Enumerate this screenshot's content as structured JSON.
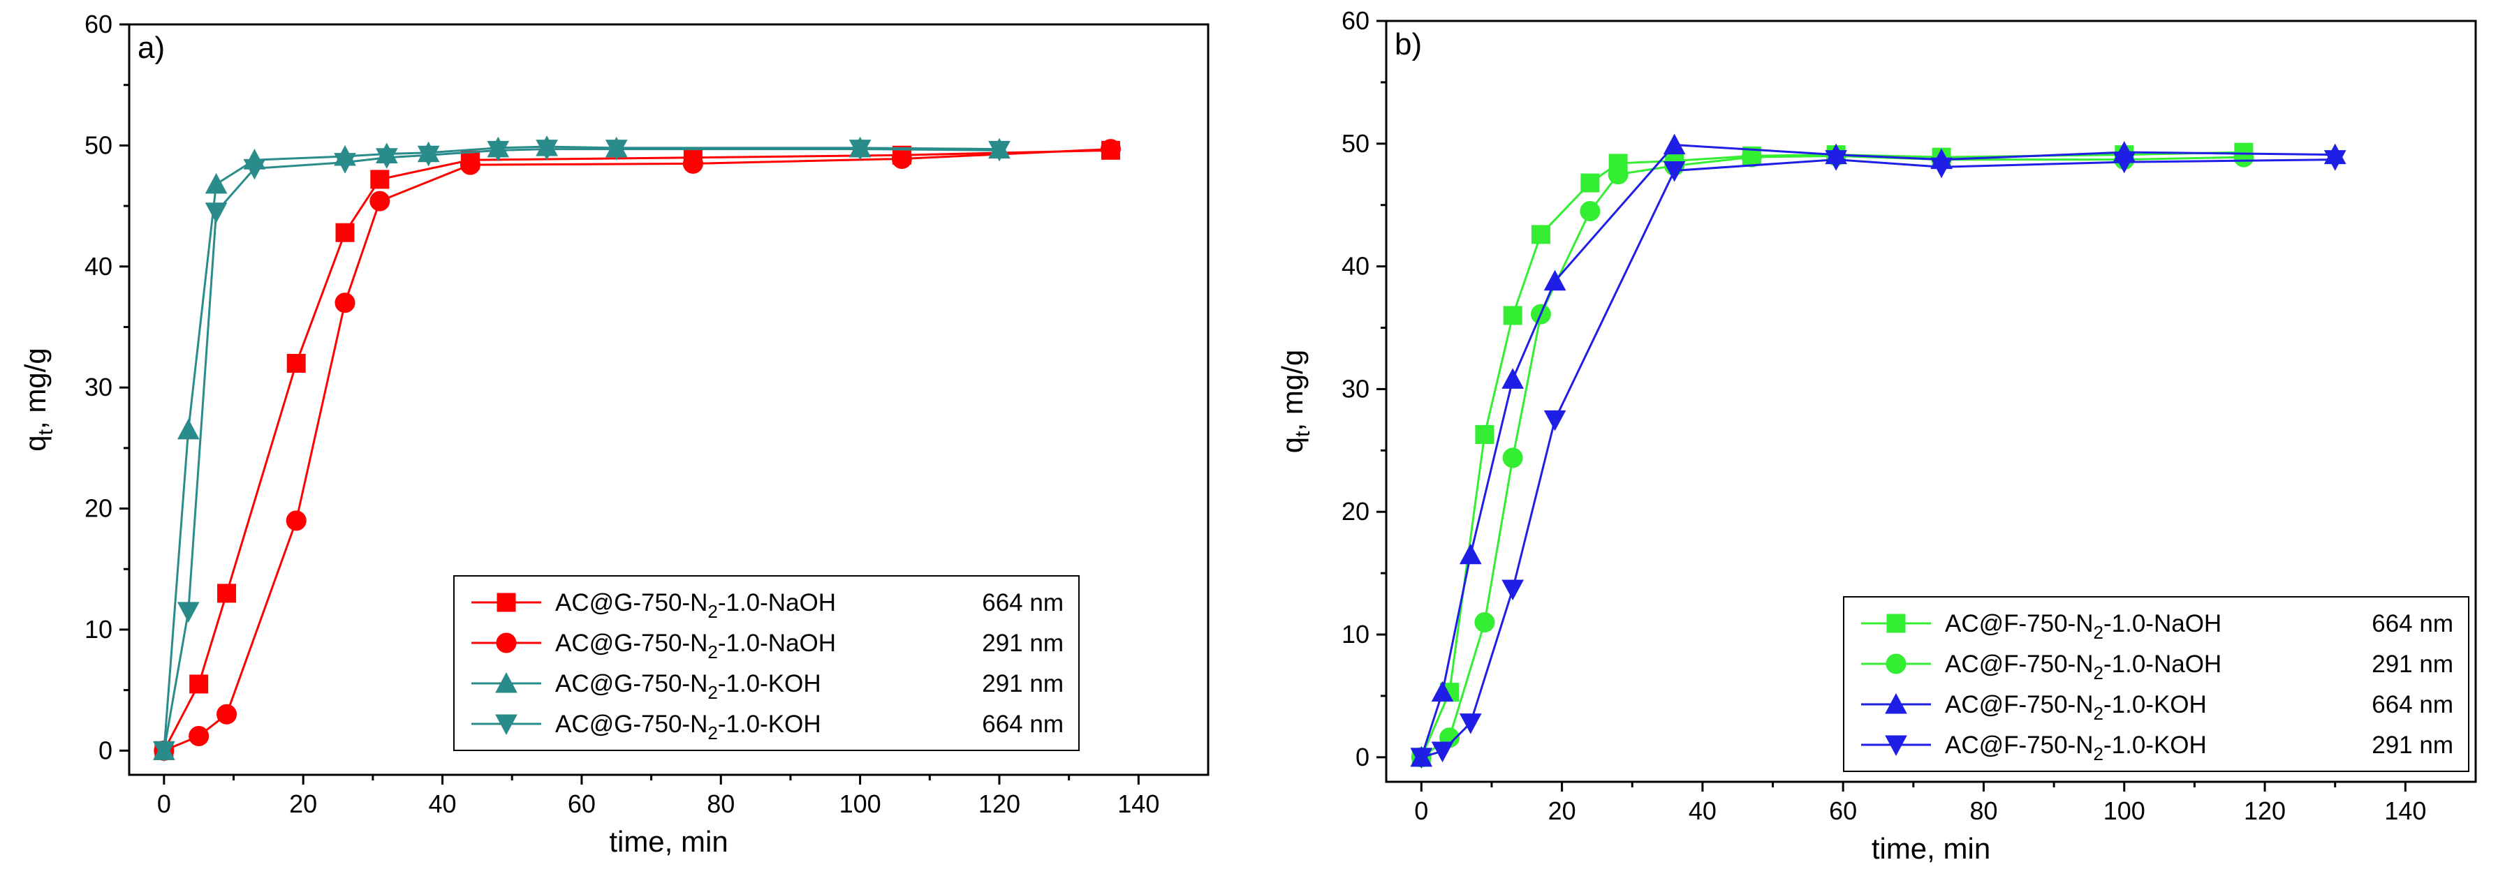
{
  "chart_data": [
    {
      "id": "a",
      "type": "line",
      "panel_label": "a)",
      "xlabel": "time, min",
      "ylabel_main": "q",
      "ylabel_sub": "t",
      "ylabel_rest": ", mg/g",
      "xlim": [
        -5,
        150
      ],
      "ylim": [
        -2,
        60
      ],
      "xticks": [
        0,
        20,
        40,
        60,
        80,
        100,
        120,
        140
      ],
      "yticks": [
        0,
        10,
        20,
        30,
        40,
        50,
        60
      ],
      "legend_position": "center-right",
      "series": [
        {
          "name_pre": "AC@G-750-N",
          "name_sub": "2",
          "name_post": "-1.0-NaOH",
          "wavelength": "664 nm",
          "color": "#ff0000",
          "marker": "square",
          "x": [
            0,
            5,
            9,
            19,
            26,
            31,
            44,
            76,
            106,
            136
          ],
          "y": [
            0,
            5.5,
            13,
            32,
            42.8,
            47.2,
            48.8,
            49,
            49.2,
            49.6
          ]
        },
        {
          "name_pre": "AC@G-750-N",
          "name_sub": "2",
          "name_post": "-1.0-NaOH",
          "wavelength": "291 nm",
          "color": "#ff0000",
          "marker": "circle",
          "x": [
            0,
            5,
            9,
            19,
            26,
            31,
            44,
            76,
            106,
            136
          ],
          "y": [
            0,
            1.2,
            3,
            19,
            37,
            45.4,
            48.4,
            48.5,
            48.9,
            49.7
          ]
        },
        {
          "name_pre": "AC@G-750-N",
          "name_sub": "2",
          "name_post": "-1.0-KOH",
          "wavelength": "291 nm",
          "color": "#2a8c8a",
          "marker": "triangle-up",
          "x": [
            0,
            3.5,
            7.5,
            13,
            26,
            32,
            38,
            48,
            55,
            65,
            100,
            120
          ],
          "y": [
            0,
            26.5,
            46.8,
            48.8,
            49.1,
            49.3,
            49.4,
            49.8,
            49.9,
            49.8,
            49.8,
            49.7
          ]
        },
        {
          "name_pre": "AC@G-750-N",
          "name_sub": "2",
          "name_post": "-1.0-KOH",
          "wavelength": "664 nm",
          "color": "#2a8c8a",
          "marker": "triangle-down",
          "x": [
            0,
            3.5,
            7.5,
            13,
            26,
            32,
            38,
            48,
            55,
            65,
            100,
            120
          ],
          "y": [
            0,
            11.5,
            44.5,
            48.1,
            48.6,
            49,
            49.2,
            49.6,
            49.7,
            49.7,
            49.7,
            49.6
          ]
        }
      ]
    },
    {
      "id": "b",
      "type": "line",
      "panel_label": "b)",
      "xlabel": "time, min",
      "ylabel_main": "q",
      "ylabel_sub": "t",
      "ylabel_rest": ", mg/g",
      "xlim": [
        -5,
        150
      ],
      "ylim": [
        -2,
        60
      ],
      "xticks": [
        0,
        20,
        40,
        60,
        80,
        100,
        120,
        140
      ],
      "yticks": [
        0,
        10,
        20,
        30,
        40,
        50,
        60
      ],
      "legend_position": "bottom-right",
      "series": [
        {
          "name_pre": "AC@F-750-N",
          "name_sub": "2",
          "name_post": "-1.0-NaOH",
          "wavelength": "664 nm",
          "color": "#33ee33",
          "marker": "square",
          "x": [
            0,
            4,
            9,
            13,
            17,
            24,
            28,
            36,
            47,
            59,
            74,
            100,
            117
          ],
          "y": [
            0,
            5.3,
            26.3,
            36,
            42.6,
            46.8,
            48.4,
            48.6,
            49,
            49.1,
            48.9,
            49.1,
            49.3
          ]
        },
        {
          "name_pre": "AC@F-750-N",
          "name_sub": "2",
          "name_post": "-1.0-NaOH",
          "wavelength": "291 nm",
          "color": "#33ee33",
          "marker": "circle",
          "x": [
            0,
            4,
            9,
            13,
            17,
            24,
            28,
            36,
            47,
            59,
            74,
            100,
            117
          ],
          "y": [
            0,
            1.6,
            11,
            24.4,
            36.1,
            44.5,
            47.5,
            48.2,
            48.9,
            49,
            48.7,
            48.7,
            48.9
          ]
        },
        {
          "name_pre": "AC@F-750-N",
          "name_sub": "2",
          "name_post": "-1.0-KOH",
          "wavelength": "664 nm",
          "color": "#1e1ee6",
          "marker": "triangle-up",
          "x": [
            0,
            3,
            7,
            13,
            19,
            36,
            59,
            74,
            100,
            130
          ],
          "y": [
            0,
            5.3,
            16.5,
            30.8,
            38.8,
            49.9,
            49.1,
            48.7,
            49.3,
            49.1
          ]
        },
        {
          "name_pre": "AC@F-750-N",
          "name_sub": "2",
          "name_post": "-1.0-KOH",
          "wavelength": "291 nm",
          "color": "#1e1ee6",
          "marker": "triangle-down",
          "x": [
            0,
            3,
            7,
            13,
            19,
            36,
            59,
            74,
            100,
            130
          ],
          "y": [
            0,
            0.5,
            2.8,
            13.7,
            27.5,
            47.8,
            48.7,
            48.1,
            48.5,
            48.7
          ]
        }
      ]
    }
  ]
}
